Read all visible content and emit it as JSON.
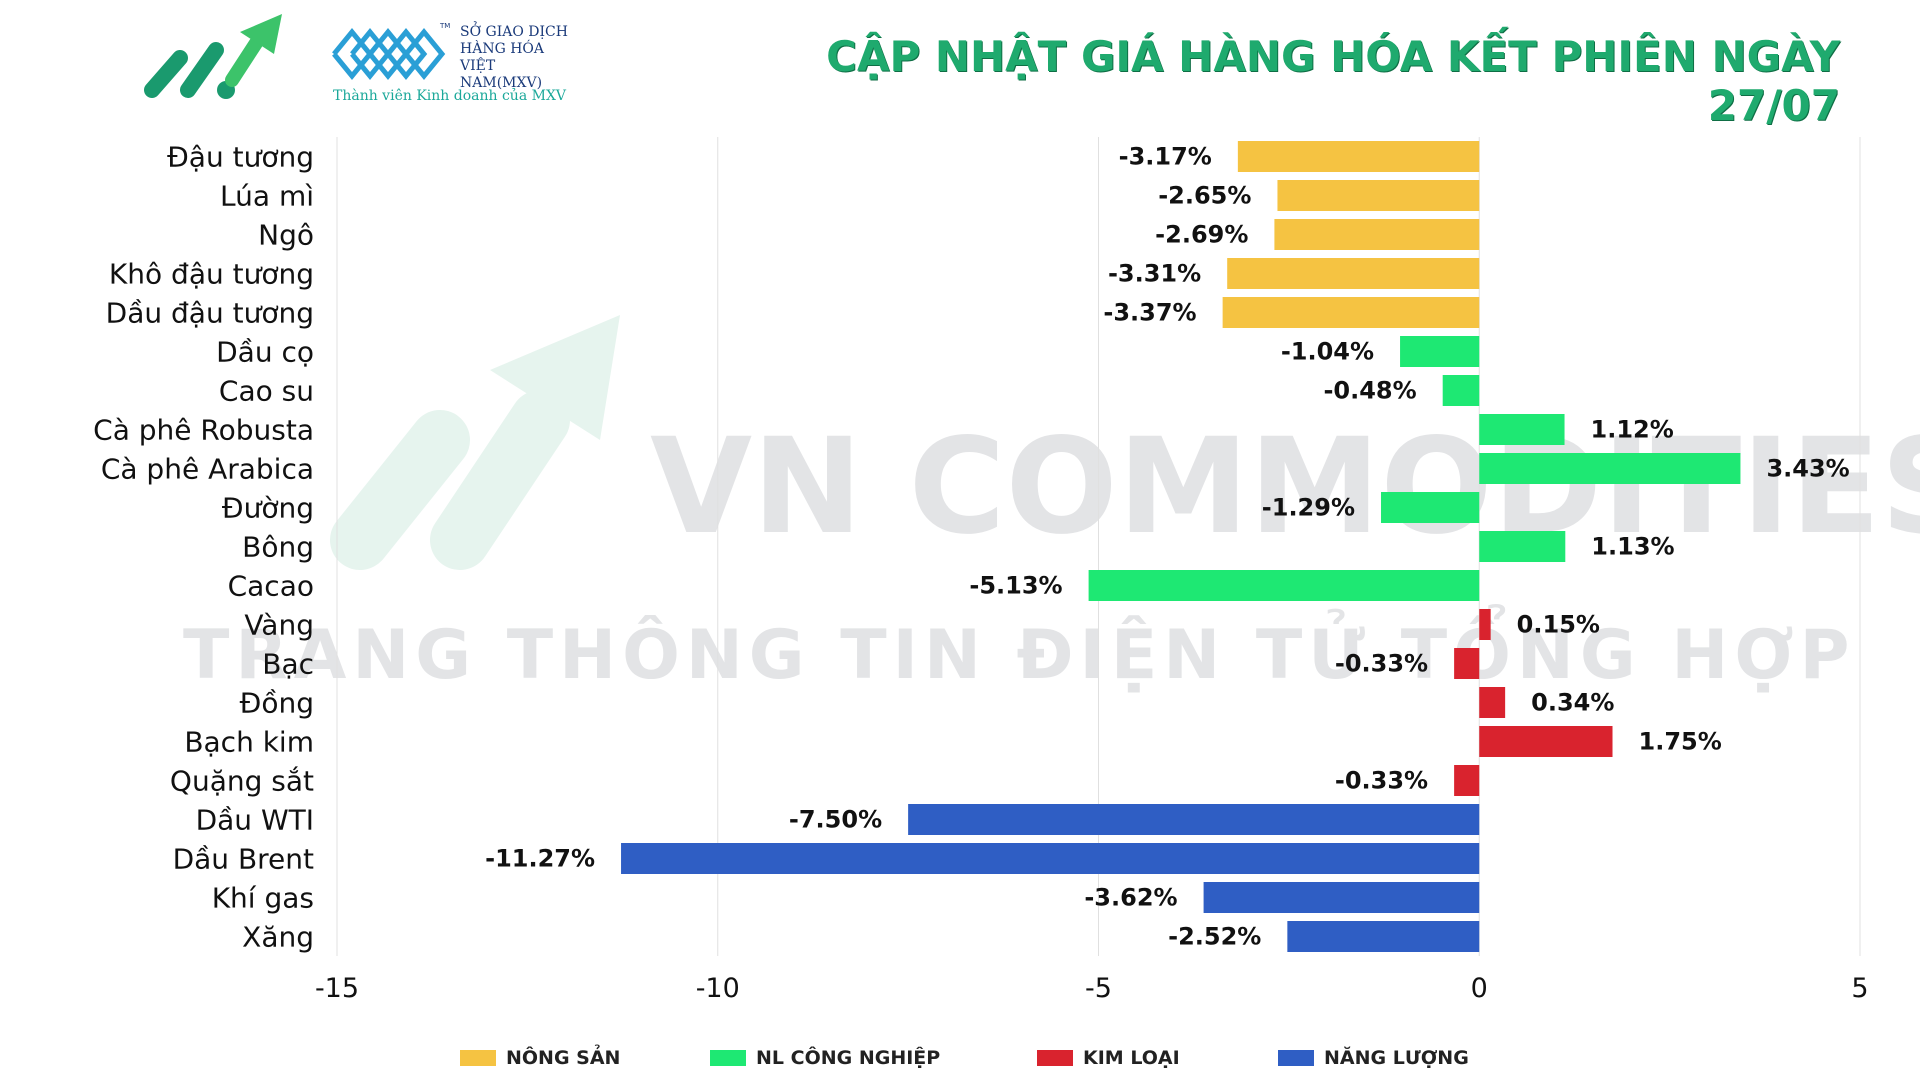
{
  "header": {
    "title": "CẬP NHẬT GIÁ HÀNG HÓA KẾT PHIÊN NGÀY 27/07",
    "mxv_lines": [
      "SỞ GIAO DỊCH",
      "HÀNG HÓA",
      "VIỆT NAM(MXV)"
    ],
    "mxv_tm": "TM",
    "mxv_subtitle": "Thành viên Kinh doanh của MXV",
    "brand_icon": "growth-arrow-icon",
    "mxv_icon": "mxv-lattice-icon"
  },
  "watermark": {
    "line1": "VN COMMODITIES",
    "line2": "TRANG THÔNG TIN ĐIỆN TỬ TỔNG HỢP"
  },
  "colors": {
    "title": "#1faa6e",
    "nong_san": "#f5c342",
    "nl_cong_nghiep": "#1ee873",
    "kim_loai": "#d9232e",
    "nang_luong": "#2f5ec4"
  },
  "chart_data": {
    "type": "bar",
    "orientation": "horizontal",
    "xlim": [
      -15,
      5
    ],
    "xticks": [
      -15,
      -10,
      -5,
      0,
      5
    ],
    "grid": "vertical",
    "legend_position": "bottom",
    "groups": [
      {
        "key": "nong_san",
        "name": "NÔNG SẢN"
      },
      {
        "key": "nl_cong_nghiep",
        "name": "NL CÔNG NGHIỆP"
      },
      {
        "key": "kim_loai",
        "name": "KIM LOẠI"
      },
      {
        "key": "nang_luong",
        "name": "NĂNG LƯỢNG"
      }
    ],
    "categories": [
      "Đậu tương",
      "Lúa mì",
      "Ngô",
      "Khô đậu tương",
      "Dầu đậu tương",
      "Dầu cọ",
      "Cao su",
      "Cà phê Robusta",
      "Cà phê Arabica",
      "Đường",
      "Bông",
      "Cacao",
      "Vàng",
      "Bạc",
      "Đồng",
      "Bạch kim",
      "Quặng sắt",
      "Dầu WTI",
      "Dầu Brent",
      "Khí gas",
      "Xăng"
    ],
    "values": [
      -3.17,
      -2.65,
      -2.69,
      -3.31,
      -3.37,
      -1.04,
      -0.48,
      1.12,
      3.43,
      -1.29,
      1.13,
      -5.13,
      0.15,
      -0.33,
      0.34,
      1.75,
      -0.33,
      -7.5,
      -11.27,
      -3.62,
      -2.52
    ],
    "value_labels": [
      "-3.17%",
      "-2.65%",
      "-2.69%",
      "-3.31%",
      "-3.37%",
      "-1.04%",
      "-0.48%",
      "1.12%",
      "3.43%",
      "-1.29%",
      "1.13%",
      "-5.13%",
      "0.15%",
      "-0.33%",
      "0.34%",
      "1.75%",
      "-0.33%",
      "-7.50%",
      "-11.27%",
      "-3.62%",
      "-2.52%"
    ],
    "category_group": [
      "nong_san",
      "nong_san",
      "nong_san",
      "nong_san",
      "nong_san",
      "nl_cong_nghiep",
      "nl_cong_nghiep",
      "nl_cong_nghiep",
      "nl_cong_nghiep",
      "nl_cong_nghiep",
      "nl_cong_nghiep",
      "nl_cong_nghiep",
      "kim_loai",
      "kim_loai",
      "kim_loai",
      "kim_loai",
      "kim_loai",
      "nang_luong",
      "nang_luong",
      "nang_luong",
      "nang_luong"
    ]
  }
}
